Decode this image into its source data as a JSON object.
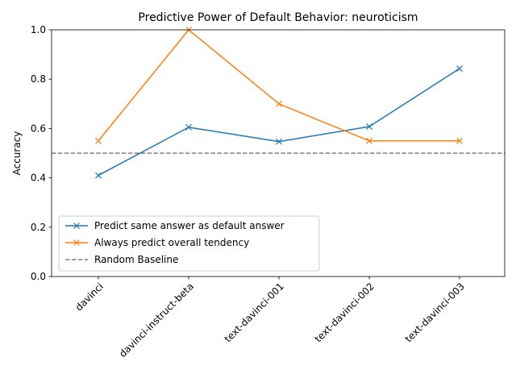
{
  "chart_data": {
    "type": "line",
    "title": "Predictive Power of Default Behavior: neuroticism",
    "xlabel": "",
    "ylabel": "Accuracy",
    "categories": [
      "davinci",
      "davinci-instruct-beta",
      "text-davinci-001",
      "text-davinci-002",
      "text-davinci-003"
    ],
    "ylim": [
      0.0,
      1.0
    ],
    "yticks": [
      0.0,
      0.2,
      0.4,
      0.6,
      0.8,
      1.0
    ],
    "ytick_labels": [
      "0.0",
      "0.2",
      "0.4",
      "0.6",
      "0.8",
      "1.0"
    ],
    "grid": false,
    "legend_position": "lower-left",
    "series": [
      {
        "name": "Predict same answer as default answer",
        "values": [
          0.41,
          0.605,
          0.547,
          0.608,
          0.843
        ],
        "color": "#1f77b4",
        "marker": "x",
        "style": "solid"
      },
      {
        "name": "Always predict overall tendency",
        "values": [
          0.55,
          1.0,
          0.7,
          0.55,
          0.55
        ],
        "color": "#ff7f0e",
        "marker": "x",
        "style": "solid"
      }
    ],
    "baseline": {
      "name": "Random Baseline",
      "value": 0.5,
      "color": "#7f7f7f",
      "style": "dashed"
    }
  }
}
